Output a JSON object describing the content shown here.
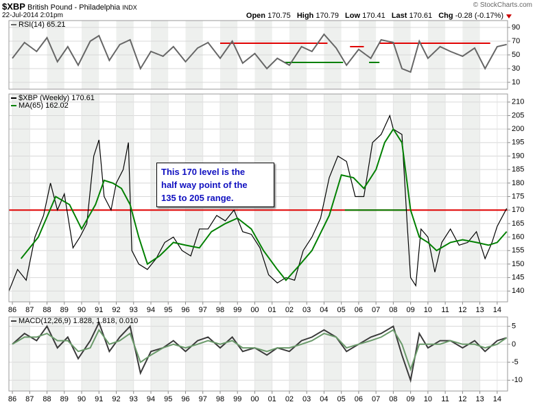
{
  "header": {
    "symbol": "$XBP",
    "name": "British Pound - Philadelphia",
    "exchange": "INDX",
    "date": "22-Jul-2014 2:01pm",
    "credit": "© StockCharts.com",
    "quote": [
      {
        "label": "Open",
        "value": "170.75"
      },
      {
        "label": "High",
        "value": "170.79"
      },
      {
        "label": "Low",
        "value": "170.41"
      },
      {
        "label": "Last",
        "value": "170.61"
      },
      {
        "label": "Chg",
        "value": "-0.28 (-0.17%)"
      }
    ]
  },
  "annotation": [
    "This 170 level is the",
    "half way point of the",
    "135 to 205 range."
  ],
  "chart_data": [
    {
      "type": "line",
      "xlim": [
        1985.8,
        2014.6
      ],
      "ylim": [
        0,
        100
      ],
      "yticks": [
        10,
        30,
        50,
        70,
        90
      ],
      "x": [
        1986,
        1986.7,
        1987.4,
        1988,
        1988.6,
        1989.2,
        1989.8,
        1990.5,
        1991,
        1991.6,
        1992.2,
        1992.8,
        1993.4,
        1994,
        1994.7,
        1995.3,
        1996,
        1996.7,
        1997.3,
        1998,
        1998.7,
        1999.3,
        2000,
        2000.7,
        2001.3,
        2002,
        2002.7,
        2003.3,
        2004,
        2004.7,
        2005.3,
        2006,
        2006.7,
        2007.3,
        2008,
        2008.5,
        2009,
        2009.5,
        2010,
        2010.7,
        2011.3,
        2012,
        2012.7,
        2013.3,
        2014,
        2014.55
      ],
      "series": [
        {
          "name": "RSI(14) 65.21",
          "color": "#666666",
          "values": [
            45,
            68,
            55,
            75,
            40,
            62,
            35,
            70,
            78,
            42,
            65,
            72,
            30,
            55,
            48,
            62,
            40,
            60,
            68,
            45,
            70,
            38,
            52,
            30,
            45,
            35,
            62,
            55,
            80,
            60,
            35,
            58,
            45,
            72,
            68,
            30,
            25,
            70,
            45,
            62,
            55,
            48,
            60,
            30,
            62,
            65.21
          ]
        }
      ],
      "reference_lines": [
        {
          "value": 67,
          "color": "#e00000",
          "x": [
            1998,
            2004.2
          ]
        },
        {
          "value": 62,
          "color": "#e00000",
          "x": [
            2005.5,
            2006.3
          ]
        },
        {
          "value": 67,
          "color": "#e00000",
          "x": [
            2007.2,
            2013.6
          ]
        },
        {
          "value": 39,
          "color": "#008000",
          "x": [
            2001.7,
            2005.1
          ]
        },
        {
          "value": 39,
          "color": "#008000",
          "x": [
            2006.6,
            2007.2
          ]
        }
      ]
    },
    {
      "type": "line",
      "xlim": [
        1985.8,
        2014.6
      ],
      "ylim": [
        136,
        213
      ],
      "yticks": [
        140,
        145,
        150,
        155,
        160,
        165,
        170,
        175,
        180,
        185,
        190,
        195,
        200,
        205,
        210
      ],
      "xticks": [
        {
          "value": 1986,
          "label": "86"
        },
        {
          "value": 1987,
          "label": "87"
        },
        {
          "value": 1988,
          "label": "88"
        },
        {
          "value": 1989,
          "label": "89"
        },
        {
          "value": 1990,
          "label": "90"
        },
        {
          "value": 1991,
          "label": "91"
        },
        {
          "value": 1992,
          "label": "92"
        },
        {
          "value": 1993,
          "label": "93"
        },
        {
          "value": 1994,
          "label": "94"
        },
        {
          "value": 1995,
          "label": "95"
        },
        {
          "value": 1996,
          "label": "96"
        },
        {
          "value": 1997,
          "label": "97"
        },
        {
          "value": 1998,
          "label": "98"
        },
        {
          "value": 1999,
          "label": "99"
        },
        {
          "value": 2000,
          "label": "00"
        },
        {
          "value": 2001,
          "label": "01"
        },
        {
          "value": 2002,
          "label": "02"
        },
        {
          "value": 2003,
          "label": "03"
        },
        {
          "value": 2004,
          "label": "04"
        },
        {
          "value": 2005,
          "label": "05"
        },
        {
          "value": 2006,
          "label": "06"
        },
        {
          "value": 2007,
          "label": "07"
        },
        {
          "value": 2008,
          "label": "08"
        },
        {
          "value": 2009,
          "label": "09"
        },
        {
          "value": 2010,
          "label": "10"
        },
        {
          "value": 2011,
          "label": "11"
        },
        {
          "value": 2012,
          "label": "12"
        },
        {
          "value": 2013,
          "label": "13"
        },
        {
          "value": 2014,
          "label": "14"
        }
      ],
      "series": [
        {
          "name": "$XBP (Weekly) 170.61",
          "color": "#000000",
          "x": [
            1985.8,
            1986.3,
            1986.8,
            1987.3,
            1987.8,
            1988.2,
            1988.6,
            1989.0,
            1989.5,
            1989.9,
            1990.3,
            1990.7,
            1991.0,
            1991.3,
            1991.7,
            1992.0,
            1992.4,
            1992.7,
            1992.9,
            1993.3,
            1993.8,
            1994.3,
            1994.8,
            1995.3,
            1995.8,
            1996.3,
            1996.8,
            1997.3,
            1997.8,
            1998.3,
            1998.8,
            1999.3,
            1999.8,
            2000.3,
            2000.8,
            2001.3,
            2001.8,
            2002.3,
            2002.8,
            2003.3,
            2003.8,
            2004.3,
            2004.8,
            2005.3,
            2005.8,
            2006.3,
            2006.8,
            2007.3,
            2007.8,
            2008.0,
            2008.5,
            2008.8,
            2009.0,
            2009.3,
            2009.6,
            2010.0,
            2010.4,
            2010.8,
            2011.3,
            2011.8,
            2012.3,
            2012.8,
            2013.3,
            2013.7,
            2014.0,
            2014.55
          ],
          "values": [
            140,
            148,
            144,
            160,
            168,
            180,
            170,
            176,
            156,
            160,
            165,
            190,
            196,
            175,
            170,
            180,
            185,
            195,
            155,
            150,
            148,
            152,
            158,
            160,
            155,
            153,
            163,
            163,
            168,
            166,
            170,
            162,
            161,
            156,
            146,
            143,
            145,
            144,
            155,
            160,
            167,
            182,
            190,
            188,
            175,
            175,
            195,
            198,
            205,
            200,
            198,
            165,
            145,
            142,
            163,
            160,
            147,
            158,
            163,
            157,
            158,
            162,
            152,
            158,
            164,
            170.61
          ]
        },
        {
          "name": "MA(65) 162.02",
          "color": "#008000",
          "x": [
            1986.5,
            1987.5,
            1988.5,
            1989.3,
            1990.0,
            1990.8,
            1991.3,
            1991.8,
            1992.3,
            1992.8,
            1993.3,
            1993.8,
            1994.5,
            1995.3,
            1996.0,
            1996.8,
            1997.5,
            1998.3,
            1999.0,
            1999.8,
            2000.5,
            2001.3,
            2001.8,
            2002.5,
            2003.3,
            2004.3,
            2005.0,
            2005.7,
            2006.3,
            2007.0,
            2007.5,
            2008.0,
            2008.5,
            2009.0,
            2009.5,
            2010.0,
            2010.5,
            2011.3,
            2012.0,
            2012.8,
            2013.5,
            2014.0,
            2014.55
          ],
          "values": [
            152,
            160,
            175,
            172,
            163,
            172,
            181,
            180,
            178,
            172,
            160,
            150,
            153,
            158,
            157,
            156,
            162,
            165,
            167,
            163,
            155,
            148,
            144,
            149,
            155,
            168,
            183,
            182,
            178,
            185,
            195,
            200,
            195,
            170,
            160,
            158,
            155,
            158,
            159,
            158,
            157,
            158,
            162.02
          ]
        }
      ],
      "reference_lines": [
        {
          "value": 170,
          "color": "#e00000",
          "x": [
            1985.8,
            2014.6
          ]
        },
        {
          "value": 170,
          "color": "#008000",
          "x": [
            2005.2,
            2008.8
          ]
        }
      ]
    },
    {
      "type": "line",
      "xlim": [
        1985.8,
        2014.6
      ],
      "ylim": [
        -13,
        7.6
      ],
      "yticks": [
        -10,
        -5,
        0,
        5
      ],
      "xticks": [
        {
          "value": 1986,
          "label": "86"
        },
        {
          "value": 1987,
          "label": "87"
        },
        {
          "value": 1988,
          "label": "88"
        },
        {
          "value": 1989,
          "label": "89"
        },
        {
          "value": 1990,
          "label": "90"
        },
        {
          "value": 1991,
          "label": "91"
        },
        {
          "value": 1992,
          "label": "92"
        },
        {
          "value": 1993,
          "label": "93"
        },
        {
          "value": 1994,
          "label": "94"
        },
        {
          "value": 1995,
          "label": "95"
        },
        {
          "value": 1996,
          "label": "96"
        },
        {
          "value": 1997,
          "label": "97"
        },
        {
          "value": 1998,
          "label": "98"
        },
        {
          "value": 1999,
          "label": "99"
        },
        {
          "value": 2000,
          "label": "00"
        },
        {
          "value": 2001,
          "label": "01"
        },
        {
          "value": 2002,
          "label": "02"
        },
        {
          "value": 2003,
          "label": "03"
        },
        {
          "value": 2004,
          "label": "04"
        },
        {
          "value": 2005,
          "label": "05"
        },
        {
          "value": 2006,
          "label": "06"
        },
        {
          "value": 2007,
          "label": "07"
        },
        {
          "value": 2008,
          "label": "08"
        },
        {
          "value": 2009,
          "label": "09"
        },
        {
          "value": 2010,
          "label": "10"
        },
        {
          "value": 2011,
          "label": "11"
        },
        {
          "value": 2012,
          "label": "12"
        },
        {
          "value": 2013,
          "label": "13"
        },
        {
          "value": 2014,
          "label": "14"
        }
      ],
      "x": [
        1986,
        1986.7,
        1987.4,
        1988,
        1988.6,
        1989.2,
        1989.8,
        1990.5,
        1991,
        1991.6,
        1992.2,
        1992.8,
        1993.4,
        1994,
        1994.7,
        1995.3,
        1996,
        1996.7,
        1997.3,
        1998,
        1998.7,
        1999.3,
        2000,
        2000.7,
        2001.3,
        2002,
        2002.7,
        2003.3,
        2004,
        2004.7,
        2005.3,
        2006,
        2006.7,
        2007.3,
        2008,
        2008.5,
        2009,
        2009.5,
        2010,
        2010.7,
        2011.3,
        2012,
        2012.7,
        2013.3,
        2014,
        2014.55
      ],
      "series": [
        {
          "name": "MACD(12,26,9) 1.828, 1.818, 0.010",
          "color": "#3a3a3a",
          "values": [
            0,
            3,
            1,
            5,
            -1,
            2,
            -4,
            1,
            6,
            -2,
            2,
            5,
            -8,
            -2,
            -1,
            1,
            -2,
            1,
            2,
            -1,
            2,
            -2,
            -1,
            -3,
            -1,
            -2,
            1,
            2,
            4,
            2,
            -2,
            0,
            2,
            3,
            5,
            -3,
            -10,
            3,
            -1,
            1,
            1,
            -1,
            1,
            -2,
            1,
            1.828
          ]
        },
        {
          "color": "#6a9a6a",
          "values": [
            0,
            2,
            2,
            3,
            1,
            1,
            -2,
            -1,
            4,
            0,
            1,
            3,
            -5,
            -3,
            -1,
            0,
            -1,
            0,
            1,
            0,
            1,
            -1,
            -1,
            -2,
            -1,
            -1,
            0,
            1,
            3,
            2,
            -1,
            0,
            1,
            2,
            4,
            0,
            -7,
            0,
            0,
            0,
            1,
            0,
            0,
            -1,
            0,
            1.818
          ]
        }
      ]
    }
  ]
}
